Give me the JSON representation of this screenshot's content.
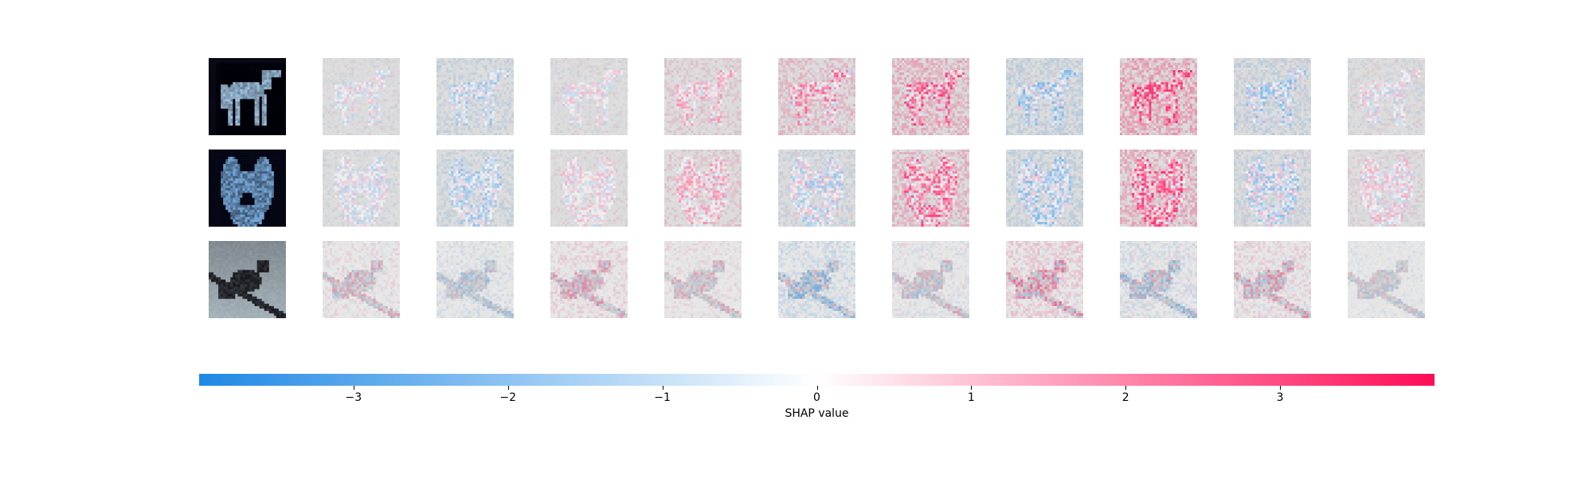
{
  "chart_data": {
    "type": "heatmap",
    "title": "",
    "layout": "3 rows x 11 columns image grid: first column shows the input image, columns 2-11 show per-class SHAP attribution maps",
    "rows": [
      {
        "input_image": "horse-silhouette",
        "subject": "horse"
      },
      {
        "input_image": "dog-face",
        "subject": "dog"
      },
      {
        "input_image": "bird-on-branch",
        "subject": "bird"
      }
    ],
    "attribution_columns": 10,
    "attribution_intensity": [
      [
        0.35,
        0.45,
        0.35,
        0.45,
        0.65,
        0.8,
        0.6,
        0.95,
        0.6,
        0.4
      ],
      [
        0.35,
        0.45,
        0.35,
        0.45,
        0.5,
        0.75,
        0.55,
        0.85,
        0.55,
        0.4
      ],
      [
        0.4,
        0.35,
        0.45,
        0.35,
        0.55,
        0.4,
        0.6,
        0.55,
        0.5,
        0.3
      ]
    ],
    "attribution_bias": [
      [
        -0.1,
        -0.6,
        0.0,
        0.5,
        0.6,
        0.8,
        -0.6,
        0.9,
        -0.5,
        -0.1
      ],
      [
        -0.3,
        -0.6,
        0.1,
        0.5,
        -0.3,
        0.7,
        -0.6,
        0.8,
        -0.4,
        0.1
      ],
      [
        0.2,
        -0.5,
        0.4,
        0.2,
        -0.6,
        -0.1,
        0.5,
        -0.3,
        0.3,
        -0.2
      ]
    ],
    "colorbar": {
      "label": "SHAP value",
      "range": [
        -4,
        4
      ],
      "ticks": [
        -3,
        -2,
        -1,
        0,
        1,
        2,
        3
      ],
      "tick_labels": [
        "−3",
        "−2",
        "−1",
        "0",
        "1",
        "2",
        "3"
      ],
      "colors": {
        "negative": "#1e88e5",
        "zero": "#ffffff",
        "positive": "#ff0d57"
      }
    }
  }
}
